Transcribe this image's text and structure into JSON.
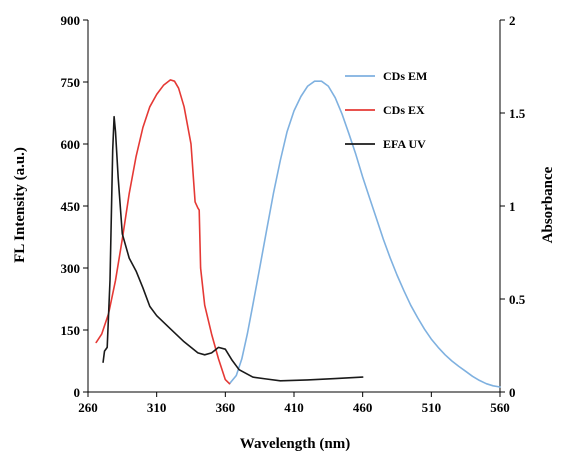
{
  "chart_data": {
    "type": "line",
    "title": "",
    "xlabel": "Wavelength (nm)",
    "ylabel_left": "FL Intensity (a.u.)",
    "ylabel_right": "Absorbance",
    "xlim": [
      260,
      560
    ],
    "ylim_left": [
      0,
      900
    ],
    "ylim_right": [
      0,
      2
    ],
    "xticks": [
      "260",
      "310",
      "360",
      "410",
      "460",
      "510",
      "560"
    ],
    "yticks_left": [
      "0",
      "150",
      "300",
      "450",
      "600",
      "750",
      "900"
    ],
    "yticks_right": [
      "0",
      "0.5",
      "1",
      "1.5",
      "2"
    ],
    "grid": false,
    "legend_position": "top-right",
    "series": [
      {
        "name": "CDs EM",
        "axis": "left",
        "color": "#7fb1e0",
        "x": [
          363,
          368,
          372,
          376,
          380,
          385,
          390,
          395,
          400,
          405,
          410,
          415,
          420,
          425,
          430,
          435,
          440,
          445,
          450,
          455,
          460,
          465,
          470,
          475,
          480,
          485,
          490,
          495,
          500,
          505,
          510,
          515,
          520,
          525,
          530,
          535,
          540,
          545,
          550,
          555,
          560
        ],
        "y": [
          20,
          40,
          80,
          140,
          210,
          300,
          390,
          480,
          560,
          630,
          680,
          715,
          740,
          752,
          752,
          740,
          712,
          672,
          625,
          575,
          520,
          470,
          420,
          370,
          325,
          283,
          245,
          210,
          180,
          152,
          128,
          108,
          90,
          75,
          62,
          50,
          38,
          28,
          20,
          15,
          12
        ]
      },
      {
        "name": "CDs EX",
        "axis": "left",
        "color": "#e53935",
        "x": [
          266,
          270,
          275,
          280,
          285,
          290,
          295,
          300,
          305,
          310,
          315,
          320,
          323,
          326,
          330,
          335,
          338,
          340,
          341,
          342,
          345,
          350,
          355,
          360,
          363
        ],
        "y": [
          120,
          140,
          190,
          270,
          370,
          480,
          570,
          640,
          690,
          720,
          742,
          755,
          752,
          735,
          690,
          600,
          460,
          445,
          440,
          300,
          210,
          140,
          80,
          30,
          20
        ]
      },
      {
        "name": "EFA UV",
        "axis": "right",
        "color": "#1a1a1a",
        "x": [
          271,
          272,
          274,
          276,
          278,
          279,
          280,
          282,
          285,
          290,
          295,
          300,
          305,
          310,
          320,
          330,
          340,
          345,
          350,
          355,
          360,
          365,
          370,
          380,
          390,
          400,
          420,
          440,
          460
        ],
        "y": [
          0.16,
          0.22,
          0.24,
          0.6,
          1.3,
          1.48,
          1.4,
          1.15,
          0.85,
          0.72,
          0.65,
          0.56,
          0.46,
          0.41,
          0.34,
          0.27,
          0.21,
          0.2,
          0.21,
          0.24,
          0.23,
          0.17,
          0.12,
          0.08,
          0.07,
          0.06,
          0.065,
          0.072,
          0.08
        ]
      }
    ]
  }
}
